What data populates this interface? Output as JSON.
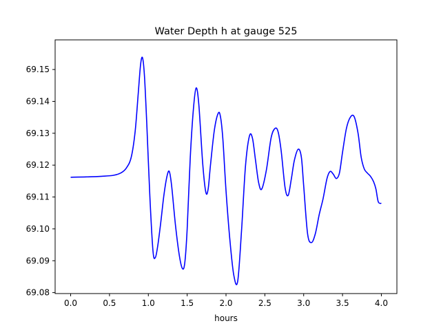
{
  "chart_data": {
    "type": "line",
    "title": "Water Depth h at gauge 525",
    "xlabel": "hours",
    "ylabel": "",
    "xlim": [
      -0.2,
      4.2
    ],
    "ylim": [
      69.0797,
      69.1593
    ],
    "xticks": [
      0.0,
      0.5,
      1.0,
      1.5,
      2.0,
      2.5,
      3.0,
      3.5,
      4.0
    ],
    "xtick_labels": [
      "0.0",
      "0.5",
      "1.0",
      "1.5",
      "2.0",
      "2.5",
      "3.0",
      "3.5",
      "4.0"
    ],
    "yticks": [
      69.08,
      69.09,
      69.1,
      69.11,
      69.12,
      69.13,
      69.14,
      69.15
    ],
    "ytick_labels": [
      "69.08",
      "69.09",
      "69.10",
      "69.11",
      "69.12",
      "69.13",
      "69.14",
      "69.15"
    ],
    "grid": false,
    "series": [
      {
        "color": "#0000ff",
        "x": [
          0.0,
          0.2,
          0.4,
          0.55,
          0.65,
          0.72,
          0.78,
          0.83,
          0.87,
          0.9,
          0.925,
          0.95,
          0.98,
          1.02,
          1.06,
          1.09,
          1.12,
          1.16,
          1.2,
          1.24,
          1.27,
          1.3,
          1.35,
          1.4,
          1.44,
          1.47,
          1.5,
          1.54,
          1.58,
          1.615,
          1.65,
          1.7,
          1.74,
          1.77,
          1.8,
          1.85,
          1.9,
          1.93,
          1.96,
          2.0,
          2.05,
          2.1,
          2.15,
          2.2,
          2.25,
          2.3,
          2.34,
          2.38,
          2.42,
          2.46,
          2.52,
          2.58,
          2.63,
          2.67,
          2.71,
          2.76,
          2.8,
          2.84,
          2.88,
          2.93,
          2.97,
          3.0,
          3.05,
          3.1,
          3.15,
          3.2,
          3.25,
          3.3,
          3.34,
          3.38,
          3.42,
          3.46,
          3.5,
          3.55,
          3.6,
          3.65,
          3.7,
          3.74,
          3.78,
          3.82,
          3.86,
          3.9,
          3.93,
          3.96,
          4.0
        ],
        "y": [
          69.1162,
          69.1163,
          69.1165,
          69.1168,
          69.1176,
          69.1192,
          69.1225,
          69.1305,
          69.1425,
          69.1515,
          69.1537,
          69.148,
          69.133,
          69.11,
          69.093,
          69.091,
          69.0945,
          69.102,
          69.1105,
          69.1165,
          69.118,
          69.1135,
          69.101,
          69.0915,
          69.0875,
          69.0895,
          69.1,
          69.1225,
          69.1375,
          69.1442,
          69.139,
          69.1205,
          69.1115,
          69.1125,
          69.12,
          69.131,
          69.1363,
          69.135,
          69.128,
          69.112,
          69.0965,
          69.0855,
          69.0835,
          69.0995,
          69.1195,
          69.129,
          69.1285,
          69.1215,
          69.1145,
          69.1125,
          69.1185,
          69.1285,
          69.1315,
          69.1305,
          69.1245,
          69.113,
          69.1105,
          69.1155,
          69.1215,
          69.125,
          69.1225,
          69.1135,
          69.0985,
          69.0957,
          69.0985,
          69.1045,
          69.1095,
          69.1158,
          69.118,
          69.1172,
          69.1158,
          69.1175,
          69.124,
          69.1315,
          69.135,
          69.1352,
          69.13,
          69.1225,
          69.1188,
          69.1175,
          69.1165,
          69.1148,
          69.1125,
          69.1085,
          69.108
        ]
      }
    ]
  }
}
